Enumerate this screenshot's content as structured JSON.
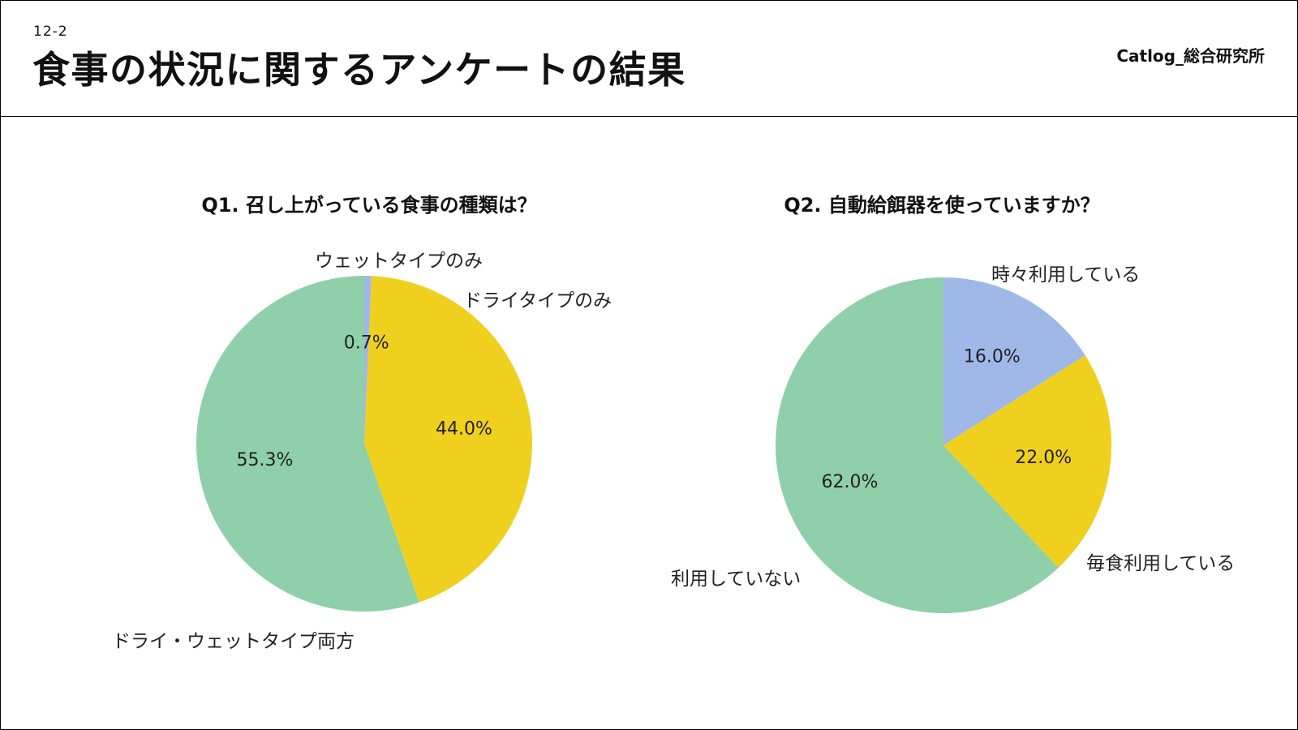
{
  "header": {
    "section_number": "12-2",
    "title": "食事の状況に関するアンケートの結果",
    "brand": "Catlog_総合研究所"
  },
  "chart_data": [
    {
      "type": "pie",
      "title": "Q1. 召し上がっている食事の種類は？",
      "categories": [
        "ウェットタイプのみ",
        "ドライタイプのみ",
        "ドライ・ウェットタイプ両方"
      ],
      "values": [
        0.7,
        44.0,
        55.3
      ],
      "data_labels": [
        "0.7%",
        "44.0%",
        "55.3%"
      ],
      "colors": [
        "#9fb8e8",
        "#efd01e",
        "#8fcfaa"
      ]
    },
    {
      "type": "pie",
      "title": "Q2. 自動給餌器を使っていますか？",
      "categories": [
        "時々利用している",
        "毎食利用している",
        "利用していない"
      ],
      "values": [
        16.0,
        22.0,
        62.0
      ],
      "data_labels": [
        "16.0%",
        "22.0%",
        "62.0%"
      ],
      "colors": [
        "#9fb8e8",
        "#efd01e",
        "#8fcfaa"
      ]
    }
  ]
}
